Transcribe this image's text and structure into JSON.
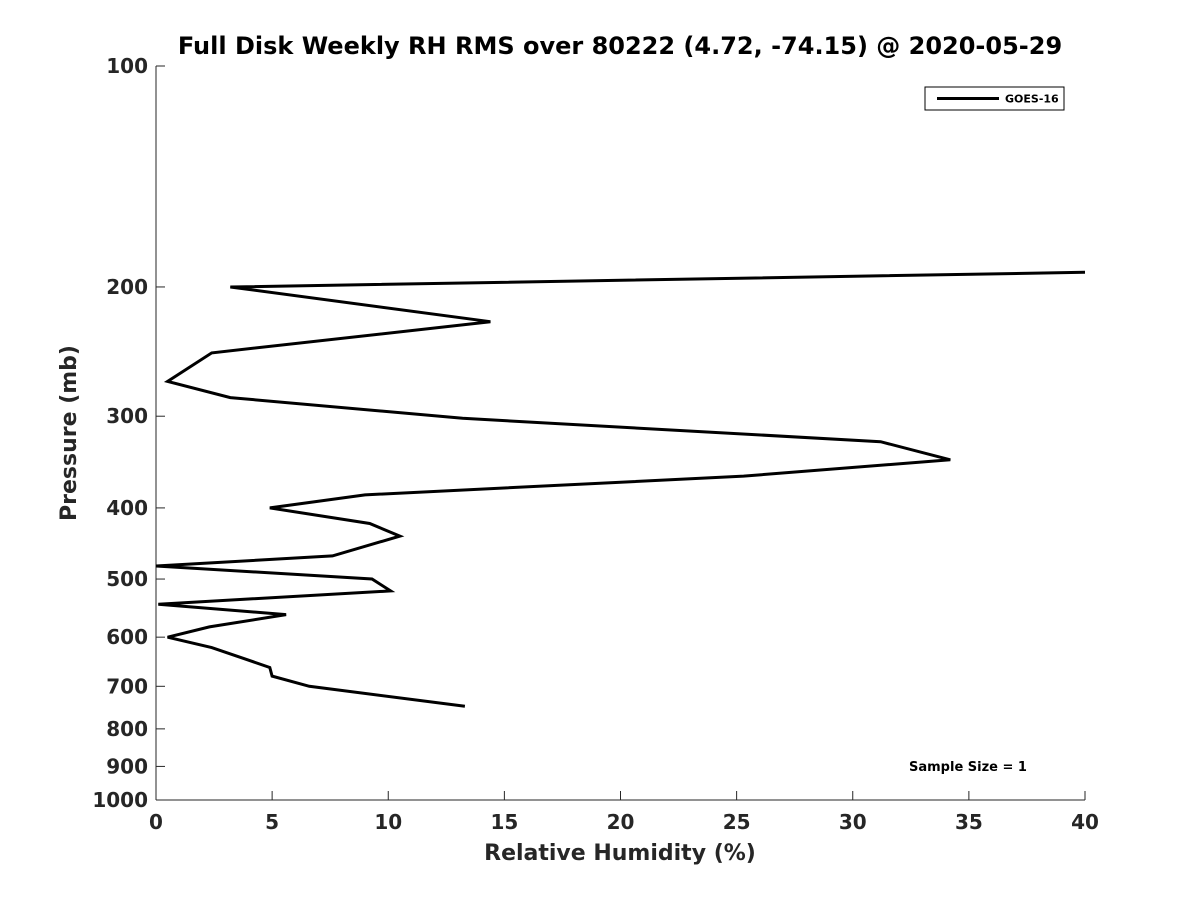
{
  "chart_data": {
    "type": "line",
    "title": "Full Disk Weekly RH RMS over 80222 (4.72, -74.15) @ 2020-05-29",
    "xlabel": "Relative Humidity (%)",
    "ylabel": "Pressure (mb)",
    "xlim": [
      0,
      40
    ],
    "ylim": [
      100,
      1000
    ],
    "y_scale": "log",
    "y_reversed": true,
    "grid": false,
    "legend_position": "top-right",
    "x_ticks": [
      0,
      5,
      10,
      15,
      20,
      25,
      30,
      35,
      40
    ],
    "x_tick_labels": [
      "0",
      "5",
      "10",
      "15",
      "20",
      "25",
      "30",
      "35",
      "40"
    ],
    "y_ticks": [
      100,
      200,
      300,
      400,
      500,
      600,
      700,
      800,
      900,
      1000
    ],
    "y_tick_labels": [
      "100",
      "200",
      "300",
      "400",
      "500",
      "600",
      "700",
      "800",
      "900",
      "1000"
    ],
    "series": [
      {
        "name": "GOES-16",
        "color": "#000000",
        "x": [
          40.0,
          3.2,
          14.4,
          2.4,
          0.5,
          3.2,
          13.2,
          31.2,
          34.2,
          25.3,
          9.0,
          4.9,
          9.2,
          10.5,
          7.6,
          0.0,
          9.3,
          10.1,
          0.1,
          5.6,
          2.3,
          0.5,
          2.4,
          3.8,
          4.9,
          5.0,
          6.6,
          13.3
        ],
        "y": [
          191,
          200,
          223,
          246,
          269,
          283,
          302,
          325,
          344,
          362,
          384,
          400,
          420,
          437,
          465,
          480,
          500,
          519,
          541,
          559,
          581,
          600,
          620,
          642,
          660,
          678,
          700,
          745
        ]
      }
    ],
    "annotations": [
      {
        "text": "Sample Size = 1",
        "position": "bottom-right"
      }
    ]
  }
}
